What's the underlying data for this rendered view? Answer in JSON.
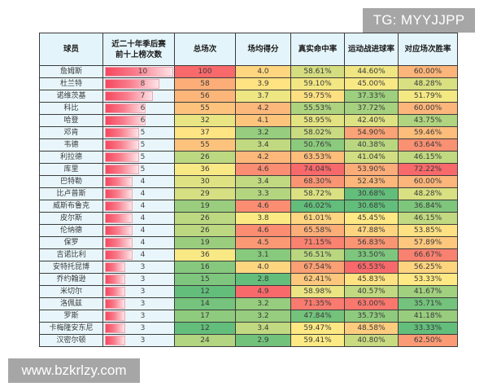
{
  "watermarks": {
    "top_right": "TG: MYYJJPP",
    "bottom_left": "www.bzkrlzy.com"
  },
  "table": {
    "headers": [
      "球员",
      "近二十年季后赛前十上榜次数",
      "总场次",
      "场均得分",
      "真实命中率",
      "运动战进球率",
      "对应场次胜率"
    ],
    "header_lines": {
      "appearances": [
        "近二十年季后赛",
        "前十上榜次数"
      ]
    },
    "rows": [
      {
        "name": "詹姆斯",
        "appearances": 10,
        "games": 100,
        "ppg": "4.0",
        "ts": "58.61%",
        "fg": "44.60%",
        "win": "60.00%"
      },
      {
        "name": "杜兰特",
        "appearances": 8,
        "games": 58,
        "ppg": "3.9",
        "ts": "59.10%",
        "fg": "45.00%",
        "win": "48.28%"
      },
      {
        "name": "诺维茨基",
        "appearances": 7,
        "games": 56,
        "ppg": "3.7",
        "ts": "59.75%",
        "fg": "37.33%",
        "win": "51.79%"
      },
      {
        "name": "科比",
        "appearances": 6,
        "games": 55,
        "ppg": "4.2",
        "ts": "55.53%",
        "fg": "37.72%",
        "win": "60.00%"
      },
      {
        "name": "哈登",
        "appearances": 6,
        "games": 32,
        "ppg": "4.1",
        "ts": "58.95%",
        "fg": "42.40%",
        "win": "43.75%"
      },
      {
        "name": "邓肯",
        "appearances": 5,
        "games": 37,
        "ppg": "3.2",
        "ts": "58.02%",
        "fg": "54.90%",
        "win": "59.46%"
      },
      {
        "name": "韦德",
        "appearances": 5,
        "games": 55,
        "ppg": "3.4",
        "ts": "50.76%",
        "fg": "40.38%",
        "win": "63.64%"
      },
      {
        "name": "利拉德",
        "appearances": 5,
        "games": 26,
        "ppg": "4.2",
        "ts": "63.53%",
        "fg": "41.04%",
        "win": "46.15%"
      },
      {
        "name": "库里",
        "appearances": 5,
        "games": 36,
        "ppg": "4.6",
        "ts": "74.04%",
        "fg": "53.90%",
        "win": "72.22%"
      },
      {
        "name": "巴特勒",
        "appearances": 4,
        "games": 30,
        "ppg": "3.4",
        "ts": "68.30%",
        "fg": "52.43%",
        "win": "60.00%"
      },
      {
        "name": "比卢普斯",
        "appearances": 4,
        "games": 29,
        "ppg": "3.3",
        "ts": "58.72%",
        "fg": "30.68%",
        "win": "48.28%"
      },
      {
        "name": "威斯布鲁克",
        "appearances": 4,
        "games": 19,
        "ppg": "4.6",
        "ts": "46.02%",
        "fg": "30.68%",
        "win": "36.84%"
      },
      {
        "name": "皮尔斯",
        "appearances": 4,
        "games": 26,
        "ppg": "3.8",
        "ts": "61.01%",
        "fg": "45.45%",
        "win": "46.15%"
      },
      {
        "name": "伦纳德",
        "appearances": 4,
        "games": 26,
        "ppg": "4.6",
        "ts": "65.58%",
        "fg": "47.88%",
        "win": "53.85%"
      },
      {
        "name": "保罗",
        "appearances": 4,
        "games": 19,
        "ppg": "4.5",
        "ts": "71.15%",
        "fg": "56.83%",
        "win": "57.89%"
      },
      {
        "name": "吉诺比利",
        "appearances": 4,
        "games": 36,
        "ppg": "3.1",
        "ts": "56.51%",
        "fg": "33.50%",
        "win": "66.67%"
      },
      {
        "name": "安特托昆博",
        "appearances": 3,
        "games": 16,
        "ppg": "4.0",
        "ts": "67.54%",
        "fg": "65.53%",
        "win": "56.25%"
      },
      {
        "name": "乔约翰逊",
        "appearances": 3,
        "games": 15,
        "ppg": "2.8",
        "ts": "62.41%",
        "fg": "45.83%",
        "win": "53.33%"
      },
      {
        "name": "米切尔",
        "appearances": 3,
        "games": 12,
        "ppg": "4.9",
        "ts": "58.98%",
        "fg": "40.57%",
        "win": "41.67%"
      },
      {
        "name": "洛佩兹",
        "appearances": 3,
        "games": 14,
        "ppg": "3.2",
        "ts": "71.35%",
        "fg": "63.00%",
        "win": "35.71%"
      },
      {
        "name": "罗斯",
        "appearances": 3,
        "games": 17,
        "ppg": "3.2",
        "ts": "47.84%",
        "fg": "35.73%",
        "win": "41.18%"
      },
      {
        "name": "卡梅隆安东尼",
        "appearances": 3,
        "games": 12,
        "ppg": "3.4",
        "ts": "59.47%",
        "fg": "48.58%",
        "win": "33.33%"
      },
      {
        "name": "汉密尔顿",
        "appearances": 3,
        "games": 24,
        "ppg": "2.9",
        "ts": "59.41%",
        "fg": "40.80%",
        "win": "62.50%"
      }
    ]
  },
  "colors": {
    "header_bg": "#e4f4fb",
    "name_bg": "#e8f6fb",
    "scale_red": "#f8696b",
    "scale_orange": "#fbaa77",
    "scale_yellow": "#ffeb84",
    "scale_green": "#63be7b",
    "bar_red": "#f5475f"
  }
}
